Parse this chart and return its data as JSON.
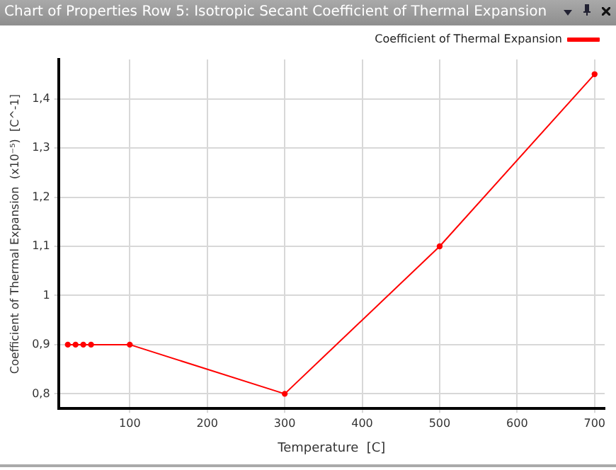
{
  "chart_data": {
    "type": "line",
    "title": "Chart of Properties Row 5: Isotropic Secant Coefficient of Thermal Expansion",
    "xlabel": "Temperature  [C]",
    "ylabel": "Coefficient of Thermal Expansion  (x10⁻⁵)  [C^-1]",
    "series": [
      {
        "name": "Coefficient of Thermal Expansion",
        "color": "#ff0000",
        "x": [
          20,
          30,
          40,
          50,
          100,
          300,
          500,
          700
        ],
        "values": [
          0.9,
          0.9,
          0.9,
          0.9,
          0.9,
          0.8,
          1.1,
          1.45
        ]
      }
    ],
    "xlim": [
      8,
      713
    ],
    "xticks": [
      100,
      200,
      300,
      400,
      500,
      600,
      700
    ],
    "ylim": [
      0.77,
      1.48
    ],
    "yticks": [
      {
        "value": 0.8,
        "label": "0,8"
      },
      {
        "value": 0.9,
        "label": "0,9"
      },
      {
        "value": 1,
        "label": "1"
      },
      {
        "value": 1.1,
        "label": "1,1"
      },
      {
        "value": 1.2,
        "label": "1,2"
      },
      {
        "value": 1.3,
        "label": "1,3"
      },
      {
        "value": 1.4,
        "label": "1,4"
      }
    ],
    "grid": true,
    "legend": "top right",
    "marker": "circle",
    "line_style": "solid"
  }
}
